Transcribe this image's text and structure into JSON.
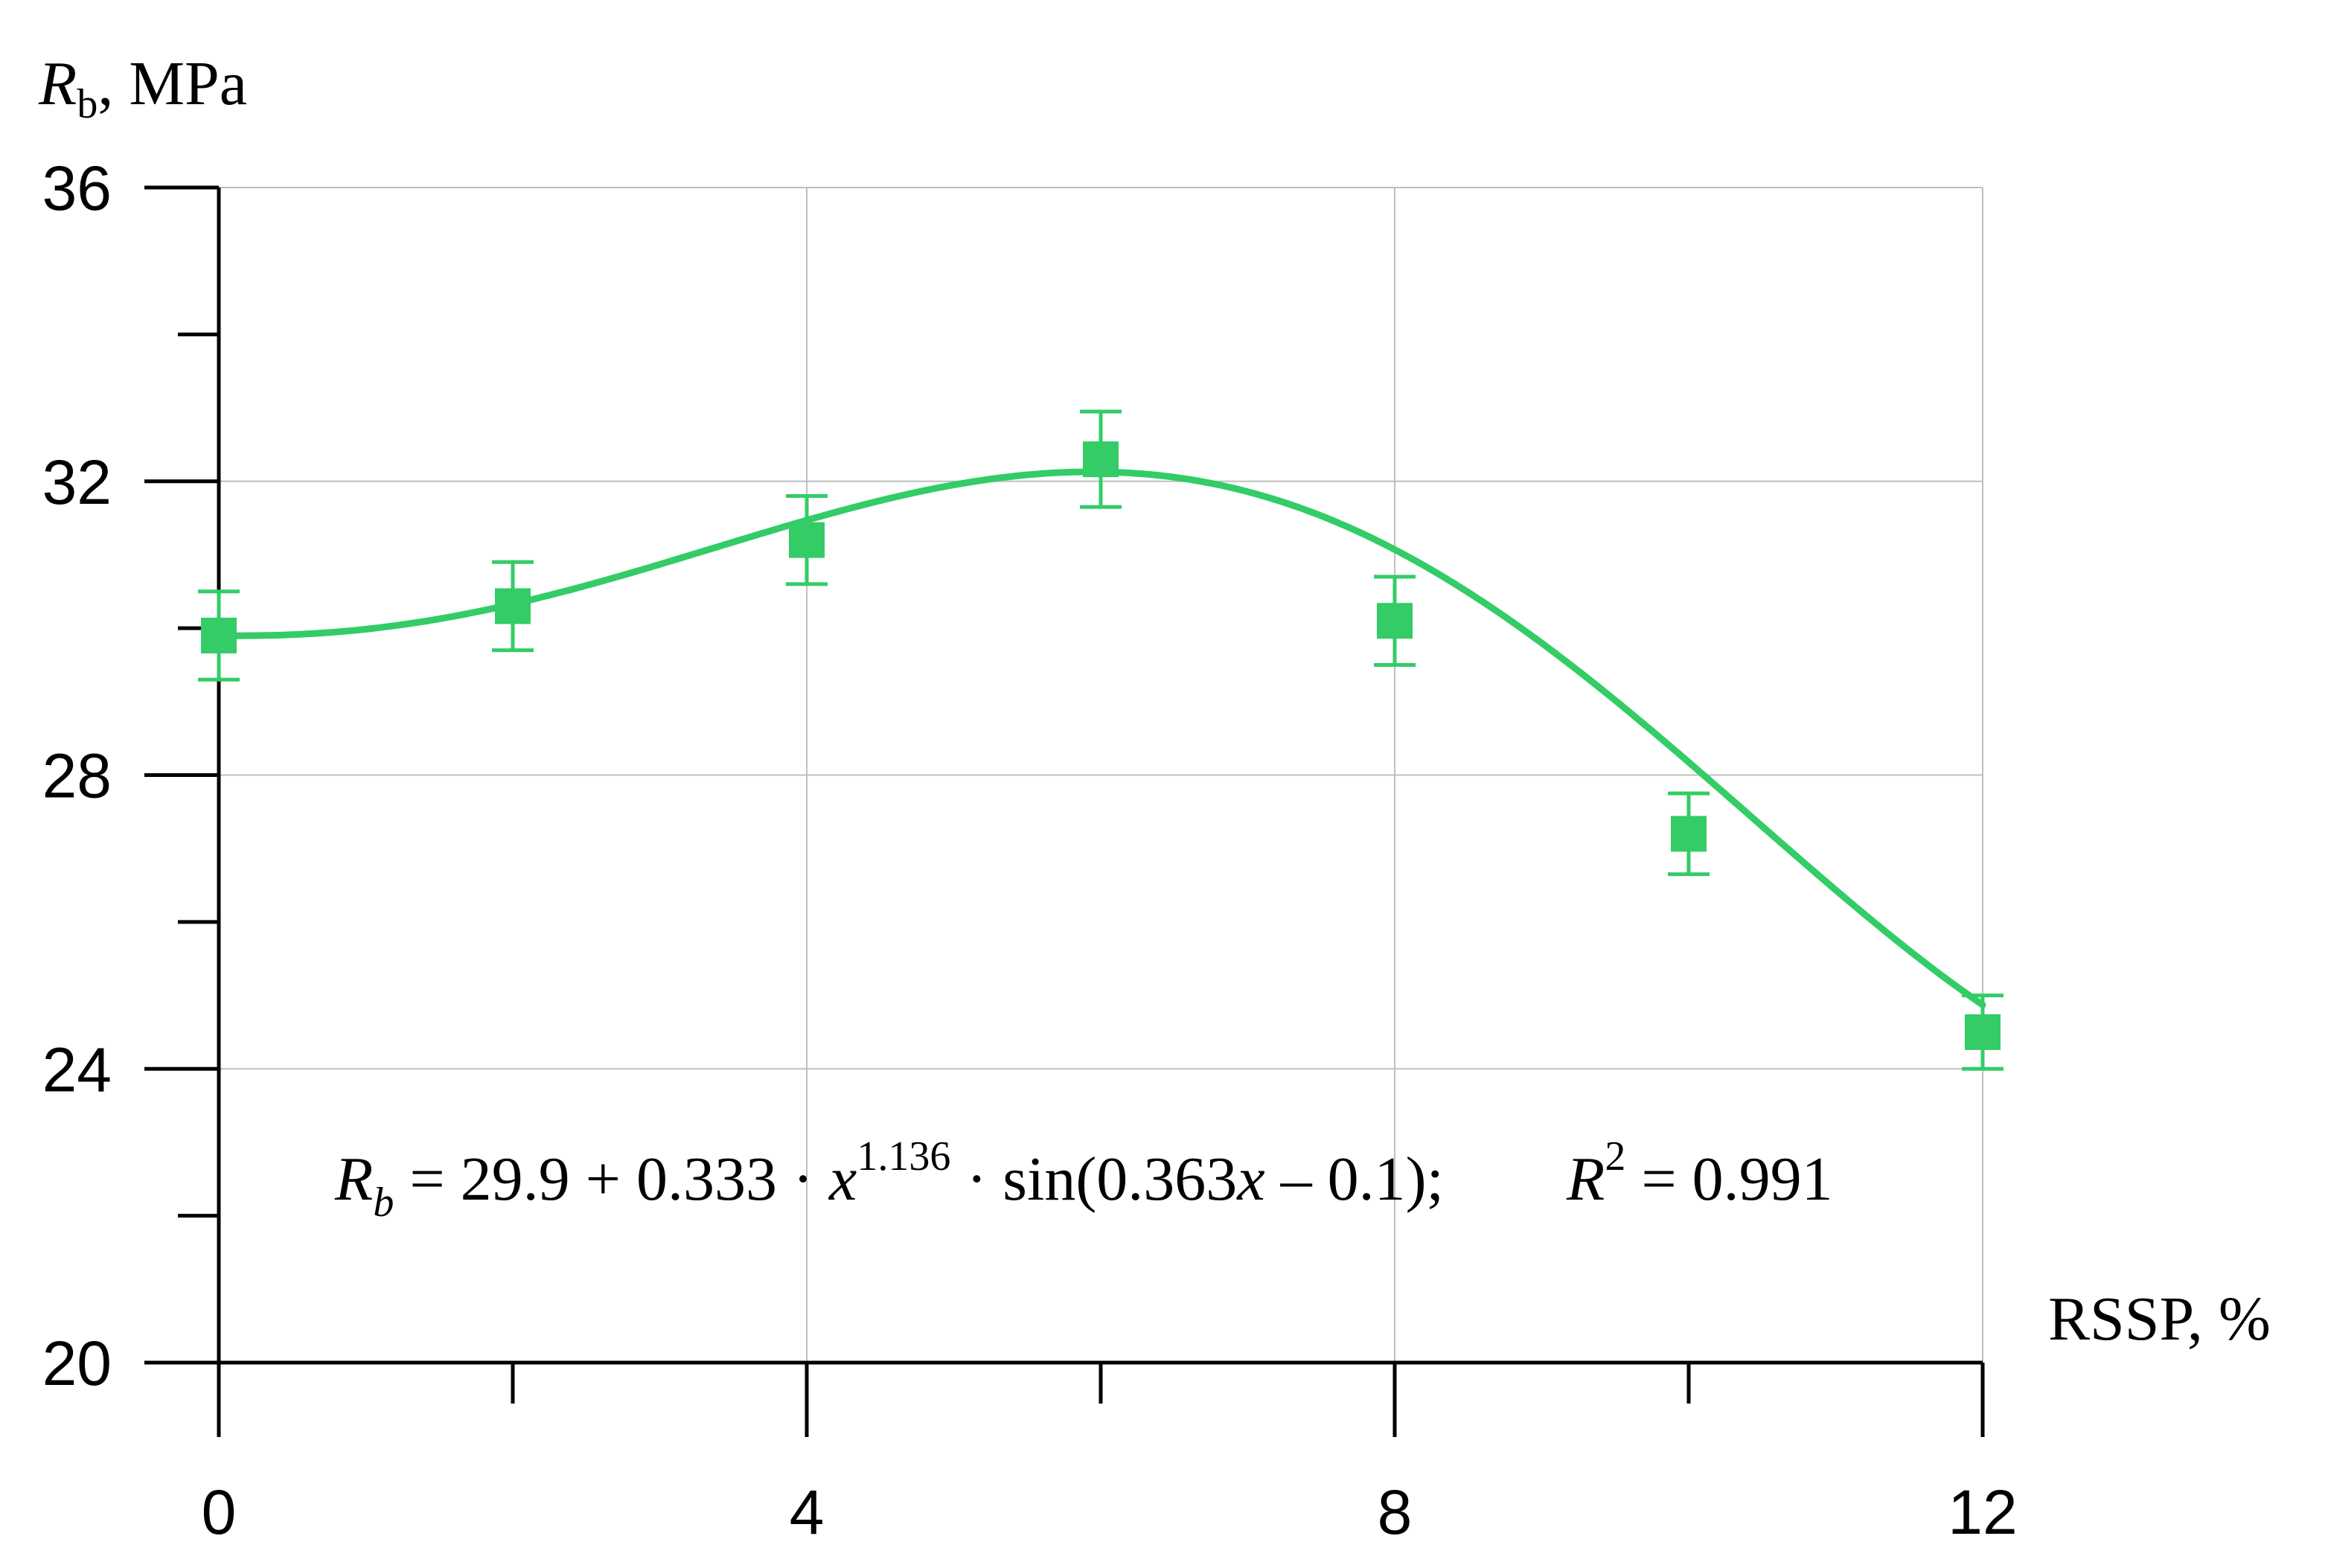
{
  "chart_data": {
    "type": "scatter",
    "ylabel": {
      "symbol": "R",
      "subscript": "b",
      "unit": ",  MPa"
    },
    "xlabel": "RSSP, %",
    "xlim": [
      0,
      12
    ],
    "ylim": [
      20,
      36
    ],
    "x_ticks_major": [
      0,
      4,
      8,
      12
    ],
    "x_ticks_minor": [
      2,
      6,
      10
    ],
    "y_ticks_major": [
      20,
      24,
      28,
      32,
      36
    ],
    "y_ticks_minor": [
      22,
      26,
      30,
      34
    ],
    "grid": true,
    "color": "#33CC66",
    "series": [
      {
        "x": [
          0,
          2,
          4,
          6,
          8,
          10,
          12
        ],
        "y": [
          29.9,
          30.3,
          31.2,
          32.3,
          30.1,
          27.2,
          24.5
        ],
        "error": [
          0.6,
          0.6,
          0.6,
          0.65,
          0.6,
          0.55,
          0.5
        ]
      }
    ],
    "fit": {
      "a": 29.9,
      "b": 0.333,
      "p": 1.136,
      "c": 0.363,
      "d": 0.1
    },
    "annotation": {
      "lhs_symbol": "R",
      "lhs_sub": "b",
      "eq_main": " = 29.9 + 0.333 · ",
      "var_x": "x",
      "exponent": "1.136",
      "eq_tail": " · sin(0.363",
      "var_x2": "x",
      "eq_end": " – 0.1);",
      "r2_symbol": "R",
      "r2_exp": "2",
      "r2_value": " = 0.991"
    }
  }
}
